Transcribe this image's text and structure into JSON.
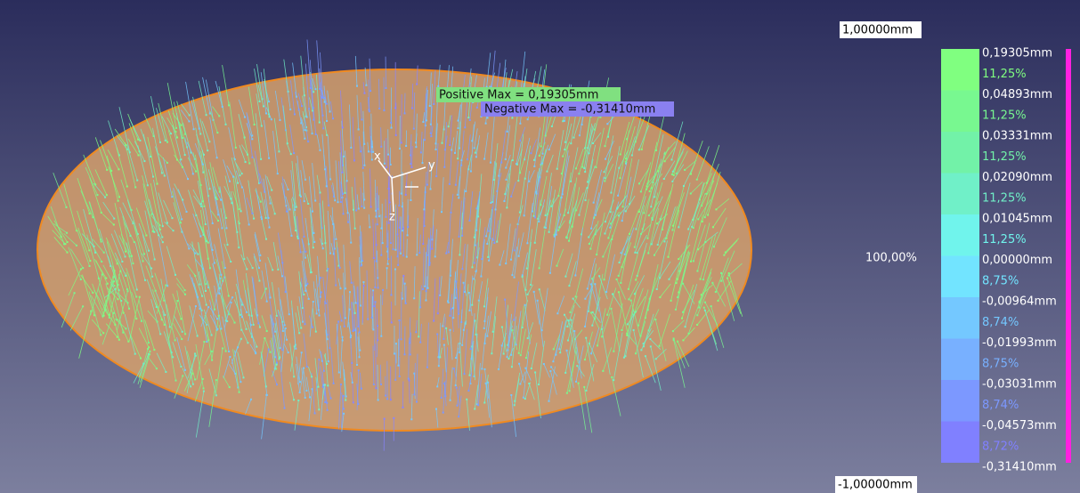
{
  "scale": {
    "max": "1,00000mm",
    "min": "-1,00000mm",
    "total": "100,00%"
  },
  "annotations": {
    "positive_max": "Positive Max = 0,19305mm",
    "negative_max": "Negative Max = -0,31410mm"
  },
  "axes": {
    "x": "x",
    "y": "y",
    "z": "z"
  },
  "legend": {
    "limits": [
      "0,19305mm",
      "0,04893mm",
      "0,03331mm",
      "0,02090mm",
      "0,01045mm",
      "0,00000mm",
      "-0,00964mm",
      "-0,01993mm",
      "-0,03031mm",
      "-0,04573mm",
      "-0,31410mm"
    ],
    "bands": [
      {
        "percent": "11,25%",
        "color": "#80ff80"
      },
      {
        "percent": "11,25%",
        "color": "#78f890"
      },
      {
        "percent": "11,25%",
        "color": "#72f2a8"
      },
      {
        "percent": "11,25%",
        "color": "#70f0c8"
      },
      {
        "percent": "11,25%",
        "color": "#70f4ec"
      },
      {
        "percent": "8,75%",
        "color": "#72e4ff"
      },
      {
        "percent": "8,74%",
        "color": "#74c8ff"
      },
      {
        "percent": "8,75%",
        "color": "#78b0ff"
      },
      {
        "percent": "8,74%",
        "color": "#7c98ff"
      },
      {
        "percent": "8,72%",
        "color": "#8080ff"
      }
    ]
  }
}
